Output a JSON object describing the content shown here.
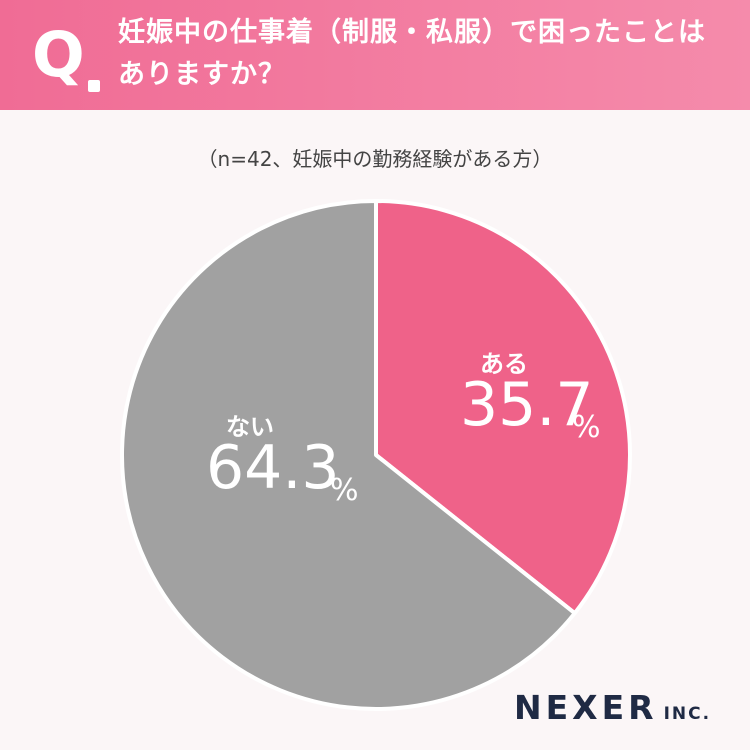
{
  "header": {
    "q_label": "Q",
    "question_line1": "妊娠中の仕事着（制服・私服）で困ったことは",
    "question_line2": "ありますか？"
  },
  "note": "（n=42、妊娠中の勤務経験がある方）",
  "chart_data": {
    "type": "pie",
    "slices": [
      {
        "label": "ある",
        "value": 35.7,
        "display": "35.7",
        "unit": "%",
        "color": "#ef6289"
      },
      {
        "label": "ない",
        "value": 64.3,
        "display": "64.3",
        "unit": "%",
        "color": "#a1a1a1"
      }
    ],
    "start": "12 o'clock",
    "direction": "clockwise"
  },
  "logo": {
    "main": "NEXER",
    "sub": "INC."
  }
}
